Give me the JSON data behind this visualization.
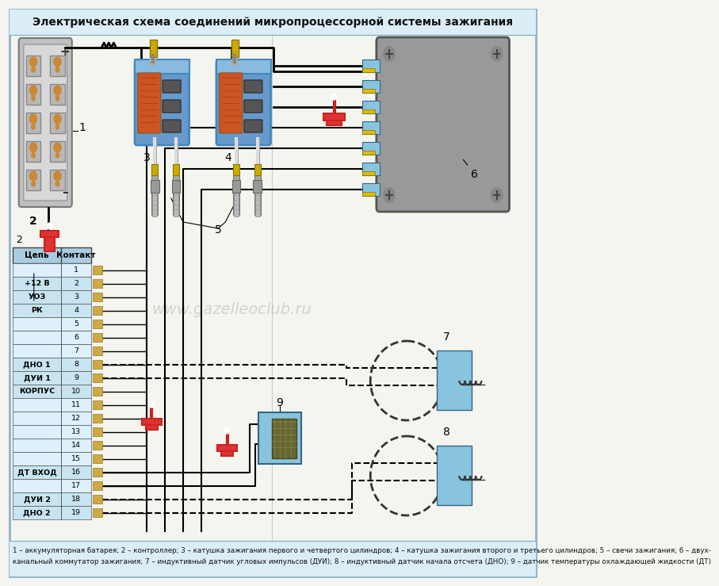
{
  "title": "Электрическая схема соединений микропроцессорной системы зажигания",
  "bg_color": "#f5f5f0",
  "border_color": "#8ab4c8",
  "caption_line1": "1 – аккумуляторная батарея; 2 – контроллер; 3 – катушка зажигания первого и четвертого цилиндров; 4 – катушка зажигания второго и третьего цилиндров; 5 – свечи зажигания; 6 – двух-",
  "caption_line2": "канальный коммутатор зажигания; 7 – индуктивный датчик угловых импульсов (ДУИ); 8 – индуктивный датчик начала отсчета (ДНО); 9 – датчик температуры охлаждающей жидкости (ДТ)",
  "watermark": "www.gazelleoclub.ru",
  "table_rows": [
    [
      "Цепь",
      "Контакт"
    ],
    [
      "",
      "1"
    ],
    [
      "+12 В",
      "2"
    ],
    [
      "УОЗ",
      "3"
    ],
    [
      "РК",
      "4"
    ],
    [
      "",
      "5"
    ],
    [
      "",
      "6"
    ],
    [
      "",
      "7"
    ],
    [
      "ДНО 1",
      "8"
    ],
    [
      "ДУИ 1",
      "9"
    ],
    [
      "КОРПУС",
      "10"
    ],
    [
      "",
      "11"
    ],
    [
      "",
      "12"
    ],
    [
      "",
      "13"
    ],
    [
      "",
      "14"
    ],
    [
      "",
      "15"
    ],
    [
      "ДТ ВХОД",
      "16"
    ],
    [
      "",
      "17"
    ],
    [
      "ДУИ 2",
      "18"
    ],
    [
      "ДНО 2",
      "19"
    ]
  ]
}
